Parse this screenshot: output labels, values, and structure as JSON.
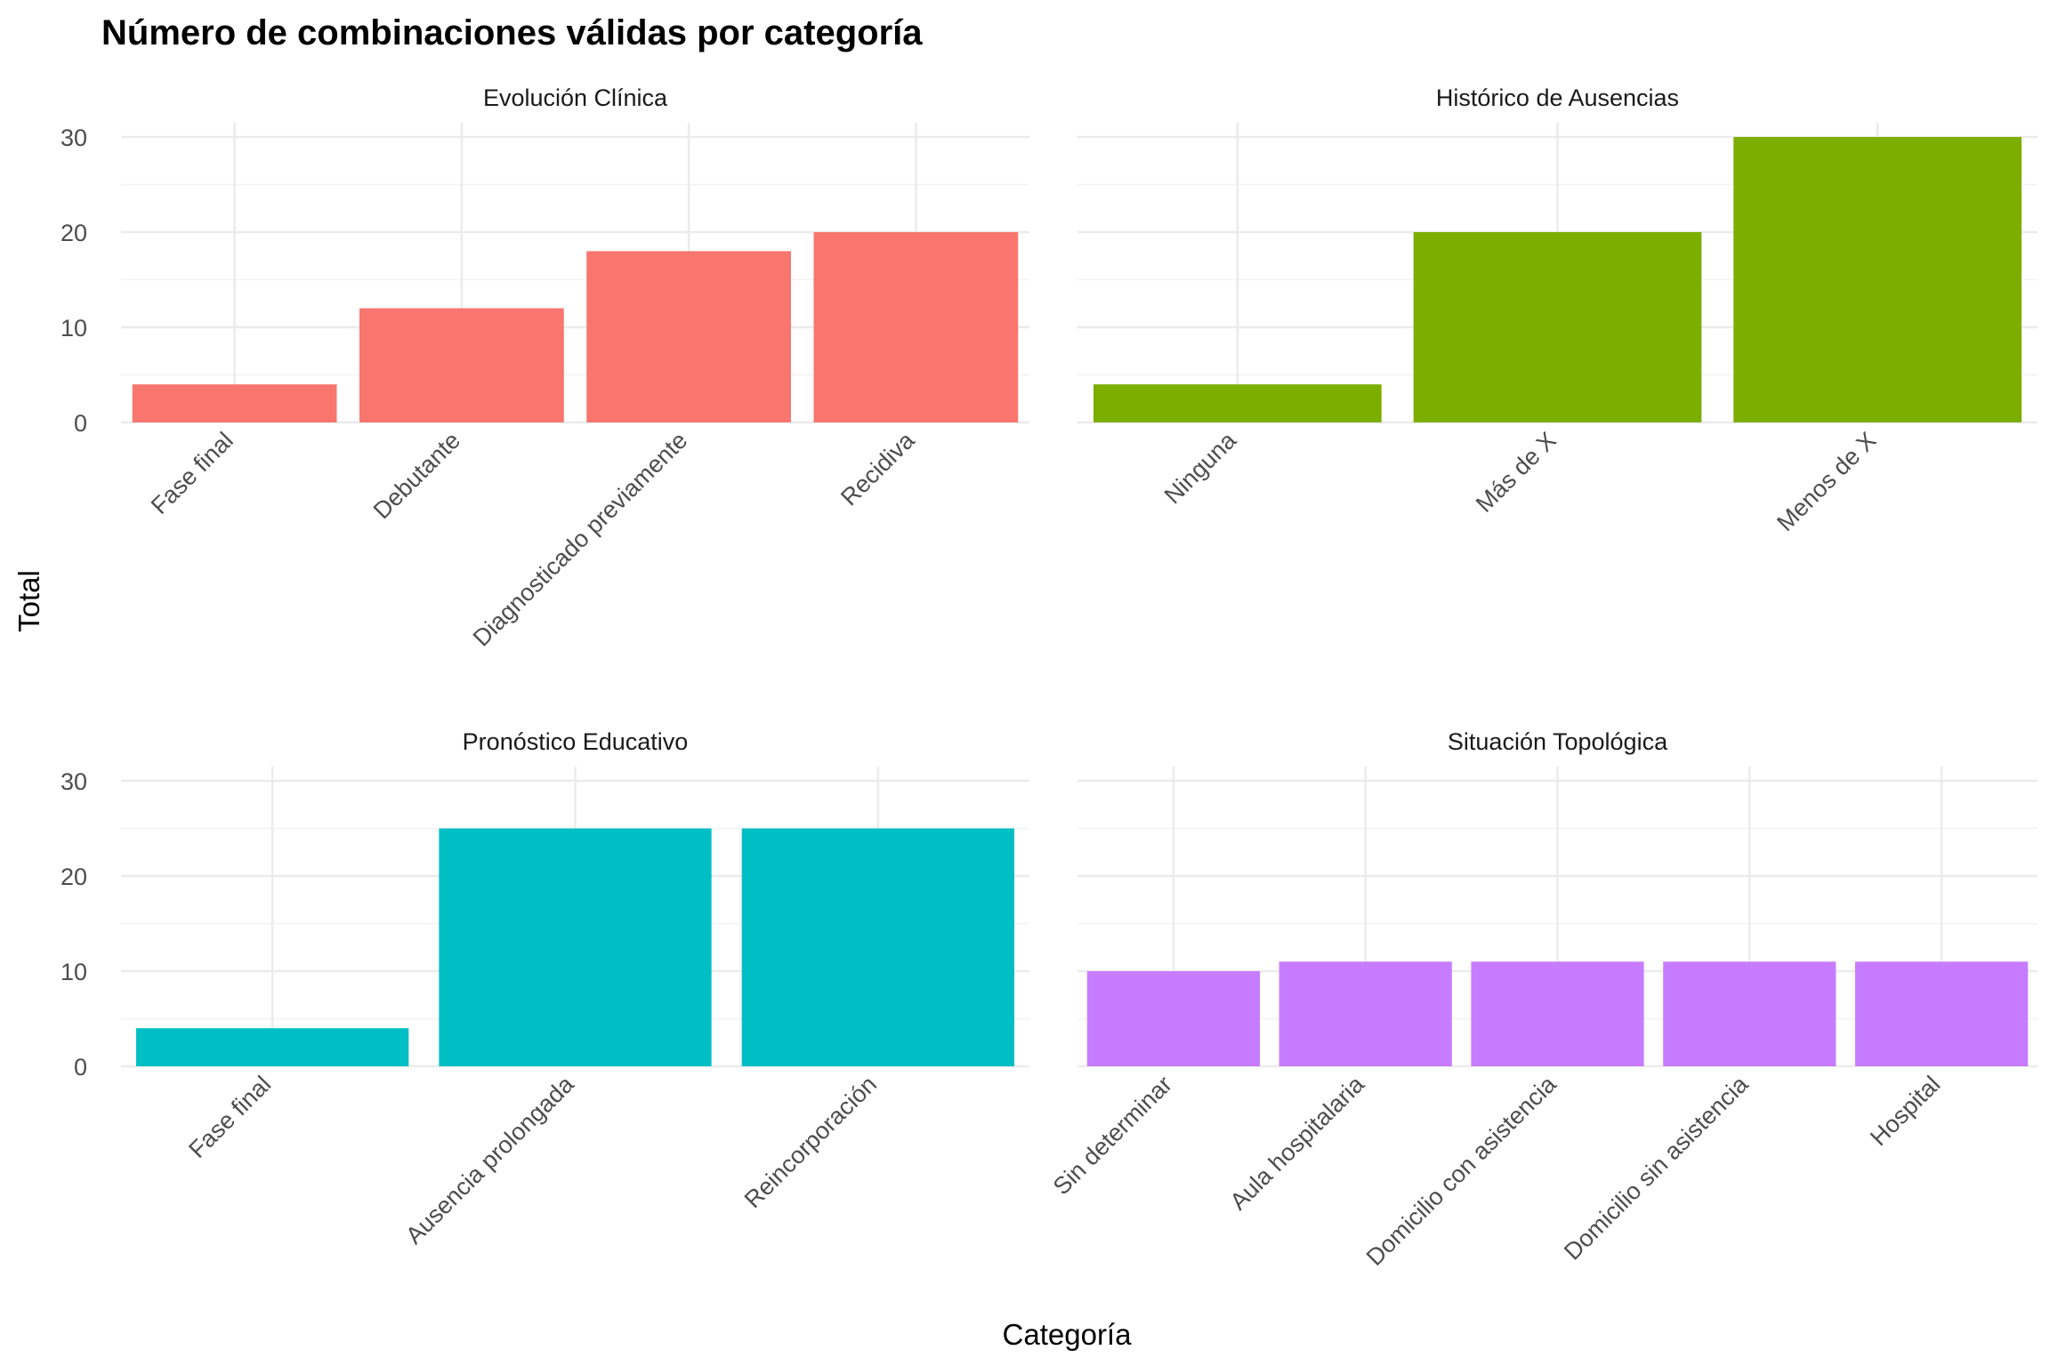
{
  "chart_data": {
    "type": "bar",
    "title": "Número de combinaciones válidas por categoría",
    "xlabel": "Categoría",
    "ylabel": "Total",
    "ylim": [
      0,
      31.5
    ],
    "yticks": [
      0,
      10,
      20,
      30
    ],
    "grid": true,
    "legend": "none",
    "facets": [
      {
        "name": "Evolución Clínica",
        "color": "#F8766D",
        "categories": [
          "Fase final",
          "Debutante",
          "Diagnosticado previamente",
          "Recidiva"
        ],
        "values": [
          4,
          12,
          18,
          20
        ]
      },
      {
        "name": "Histórico de Ausencias",
        "color": "#7CAE00",
        "categories": [
          "Ninguna",
          "Más de X",
          "Menos de X"
        ],
        "values": [
          4,
          20,
          30
        ]
      },
      {
        "name": "Pronóstico Educativo",
        "color": "#00BFC4",
        "categories": [
          "Fase final",
          "Ausencia prolongada",
          "Reincorporación"
        ],
        "values": [
          4,
          25,
          25
        ]
      },
      {
        "name": "Situación Topológica",
        "color": "#C77CFF",
        "categories": [
          "Sin determinar",
          "Aula hospitalaria",
          "Domicilio con asistencia",
          "Domicilio sin asistencia",
          "Hospital"
        ],
        "values": [
          10,
          11,
          11,
          11,
          11
        ]
      }
    ]
  }
}
